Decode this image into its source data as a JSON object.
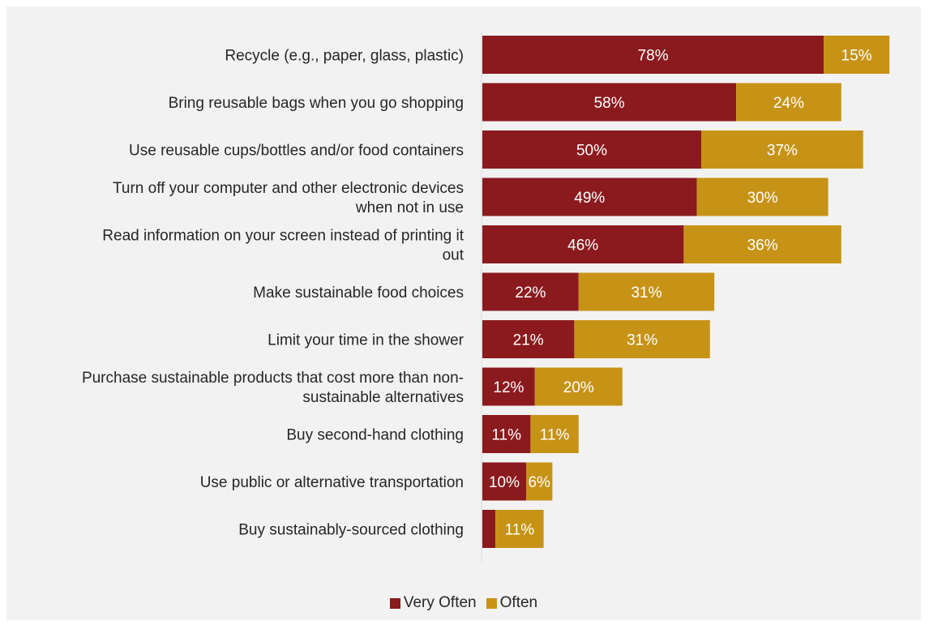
{
  "chart_data": {
    "type": "bar",
    "orientation": "horizontal",
    "stacked": true,
    "categories": [
      "Recycle (e.g., paper, glass, plastic)",
      "Bring reusable bags when you go shopping",
      "Use reusable cups/bottles and/or food containers",
      "Turn off your computer and other electronic devices when not in use",
      "Read information on your screen instead of printing it out",
      "Make sustainable food choices",
      "Limit your time in the shower",
      "Purchase sustainable products that cost more than non-sustainable alternatives",
      "Buy second-hand clothing",
      "Use public or alternative transportation",
      "Buy sustainably-sourced clothing"
    ],
    "category_lines": [
      [
        "Recycle (e.g., paper, glass, plastic)"
      ],
      [
        "Bring reusable bags when you go shopping"
      ],
      [
        "Use reusable cups/bottles and/or food containers"
      ],
      [
        "Turn off your computer and other electronic devices",
        "when not in use"
      ],
      [
        "Read information on your screen instead of printing it",
        "out"
      ],
      [
        "Make sustainable food choices"
      ],
      [
        "Limit your time in the shower"
      ],
      [
        "Purchase sustainable products that cost more than non-",
        "sustainable alternatives"
      ],
      [
        "Buy second-hand clothing"
      ],
      [
        "Use public or alternative transportation"
      ],
      [
        "Buy sustainably-sourced clothing"
      ]
    ],
    "series": [
      {
        "name": "Very Often",
        "color": "#8b1a1e",
        "values": [
          78,
          58,
          50,
          49,
          46,
          22,
          21,
          12,
          11,
          10,
          3
        ],
        "labels": [
          "78%",
          "58%",
          "50%",
          "49%",
          "46%",
          "22%",
          "21%",
          "12%",
          "11%",
          "10%",
          ""
        ]
      },
      {
        "name": "Often",
        "color": "#c79316",
        "values": [
          15,
          24,
          37,
          30,
          36,
          31,
          31,
          20,
          11,
          6,
          11
        ],
        "labels": [
          "15%",
          "24%",
          "37%",
          "30%",
          "36%",
          "31%",
          "31%",
          "20%",
          "11%",
          "6%",
          "11%"
        ]
      }
    ],
    "xlim": [
      0,
      100
    ],
    "grid": false,
    "legend_position": "bottom"
  }
}
